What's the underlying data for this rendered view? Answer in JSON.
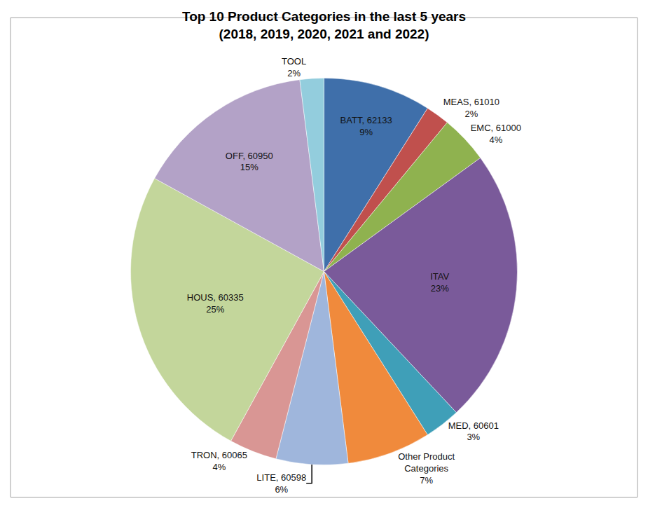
{
  "chart_data": {
    "type": "pie",
    "title": "Top 10 Product Categories in the last 5 years",
    "subtitle": "(2018, 2019, 2020, 2021 and 2022)",
    "categories": [
      "BATT, 62133",
      "MEAS, 61010",
      "EMC, 61000",
      "ITAV",
      "MED, 60601",
      "Other Product Categories",
      "LITE, 60598",
      "TRON, 60065",
      "HOUS, 60335",
      "OFF, 60950",
      "TOOL"
    ],
    "values": [
      9,
      2,
      4,
      23,
      3,
      7,
      6,
      4,
      25,
      15,
      2
    ],
    "value_labels": [
      "9%",
      "2%",
      "4%",
      "23%",
      "3%",
      "7%",
      "6%",
      "4%",
      "25%",
      "15%",
      "2%"
    ],
    "colors": [
      "#3f6faa",
      "#c0504d",
      "#8fb24f",
      "#7a5a9a",
      "#3f9fb8",
      "#f08a3c",
      "#9fb6dc",
      "#d99694",
      "#c3d69b",
      "#b3a2c7",
      "#93cddd"
    ],
    "data_labels": true
  }
}
